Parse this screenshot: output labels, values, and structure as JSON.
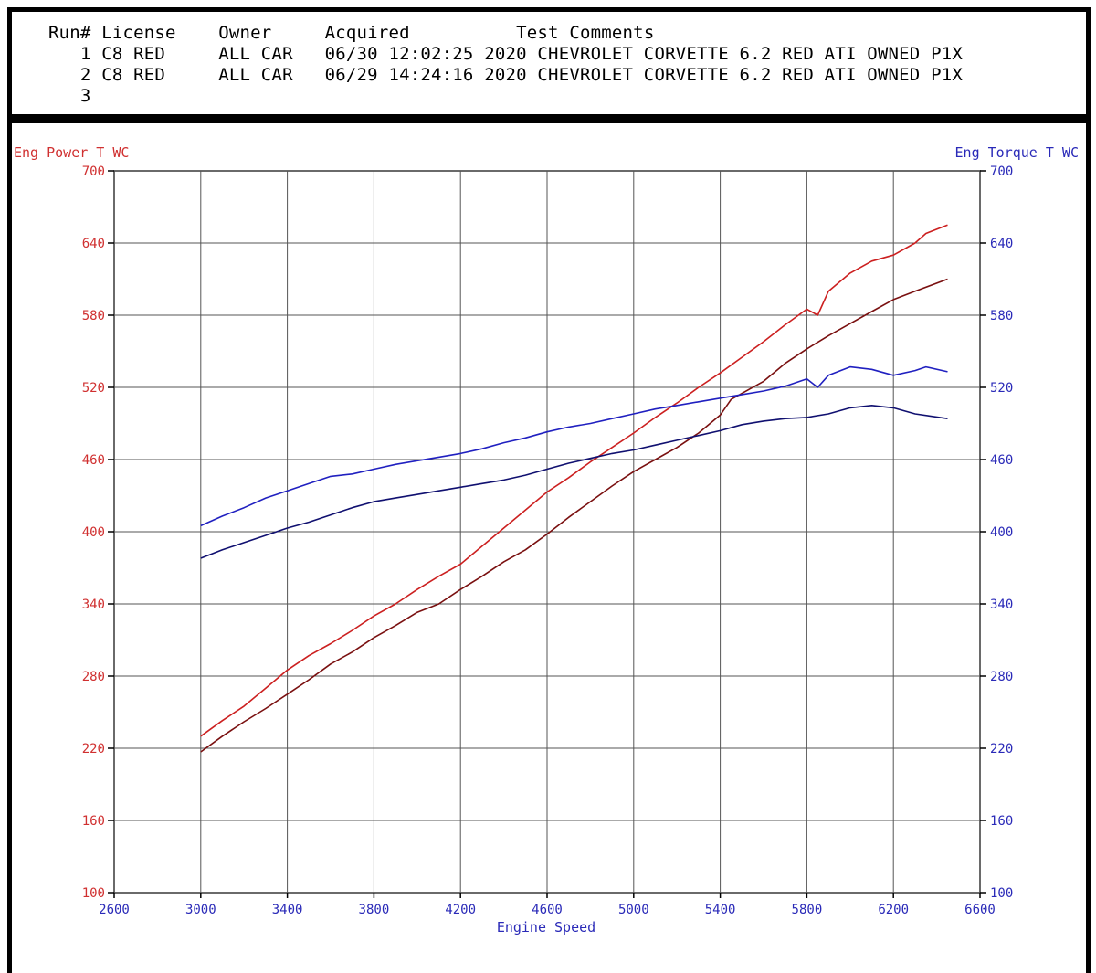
{
  "header": {
    "columns": [
      "Run#",
      "License",
      "Owner",
      "Acquired",
      "Test",
      "Comments"
    ],
    "runs": [
      {
        "run": "1",
        "license": "C8 RED",
        "owner": "ALL CAR",
        "acquired": "06/30 12:02:25",
        "test": "2020",
        "comments": "CHEVROLET CORVETTE 6.2 RED ATI OWNED P1X"
      },
      {
        "run": "2",
        "license": "C8 RED",
        "owner": "ALL CAR",
        "acquired": "06/29 14:24:16",
        "test": "2020",
        "comments": "CHEVROLET CORVETTE 6.2 RED ATI OWNED P1X"
      },
      {
        "run": "3",
        "license": "",
        "owner": "",
        "acquired": "",
        "test": "",
        "comments": ""
      }
    ]
  },
  "colors": {
    "power_axis": "#d03030",
    "torque_axis": "#2a2ab8",
    "power_run1": "#cc2020",
    "power_run2": "#7a1010",
    "torque_run1": "#2020c0",
    "torque_run2": "#101070",
    "grid": "#555555"
  },
  "chart_data": {
    "type": "line",
    "ylabel_left": "Eng Power T WC",
    "ylabel_right": "Eng Torque T WC",
    "xlabel": "Engine Speed",
    "xlim": [
      2600,
      6600
    ],
    "ylim": [
      100,
      700
    ],
    "x_ticks": [
      "2600",
      "3000",
      "3400",
      "3800",
      "4200",
      "4600",
      "5000",
      "5400",
      "5800",
      "6200",
      "6600"
    ],
    "y_ticks": [
      "100",
      "160",
      "220",
      "280",
      "340",
      "400",
      "460",
      "520",
      "580",
      "640",
      "700"
    ],
    "grid": true,
    "series": [
      {
        "axis": "left",
        "color_key": "power_run1",
        "x": [
          3000,
          3100,
          3200,
          3300,
          3400,
          3500,
          3600,
          3700,
          3800,
          3900,
          4000,
          4100,
          4200,
          4300,
          4400,
          4500,
          4600,
          4700,
          4800,
          4900,
          5000,
          5100,
          5200,
          5300,
          5400,
          5500,
          5600,
          5700,
          5800,
          5850,
          5900,
          6000,
          6100,
          6200,
          6300,
          6350,
          6450
        ],
        "values": [
          230,
          243,
          255,
          270,
          285,
          297,
          307,
          318,
          330,
          340,
          352,
          363,
          373,
          388,
          403,
          418,
          433,
          445,
          458,
          470,
          482,
          495,
          507,
          520,
          532,
          545,
          558,
          572,
          585,
          580,
          600,
          615,
          625,
          630,
          640,
          648,
          655
        ]
      },
      {
        "axis": "left",
        "color_key": "power_run2",
        "x": [
          3000,
          3100,
          3200,
          3300,
          3400,
          3500,
          3600,
          3700,
          3800,
          3900,
          4000,
          4100,
          4200,
          4300,
          4400,
          4500,
          4600,
          4700,
          4800,
          4900,
          5000,
          5100,
          5200,
          5300,
          5400,
          5450,
          5500,
          5600,
          5700,
          5800,
          5900,
          6000,
          6100,
          6200,
          6300,
          6450
        ],
        "values": [
          217,
          230,
          242,
          253,
          265,
          277,
          290,
          300,
          312,
          322,
          333,
          340,
          352,
          363,
          375,
          385,
          398,
          412,
          425,
          438,
          450,
          460,
          470,
          482,
          497,
          510,
          515,
          525,
          540,
          552,
          563,
          573,
          583,
          593,
          600,
          610
        ]
      },
      {
        "axis": "right",
        "color_key": "torque_run1",
        "x": [
          3000,
          3100,
          3200,
          3300,
          3400,
          3500,
          3600,
          3700,
          3800,
          3900,
          4000,
          4100,
          4200,
          4300,
          4400,
          4500,
          4600,
          4700,
          4800,
          4900,
          5000,
          5100,
          5200,
          5300,
          5400,
          5500,
          5600,
          5700,
          5800,
          5850,
          5900,
          6000,
          6100,
          6200,
          6300,
          6350,
          6450
        ],
        "values": [
          405,
          413,
          420,
          428,
          434,
          440,
          446,
          448,
          452,
          456,
          459,
          462,
          465,
          469,
          474,
          478,
          483,
          487,
          490,
          494,
          498,
          502,
          505,
          508,
          511,
          514,
          517,
          521,
          527,
          520,
          530,
          537,
          535,
          530,
          534,
          537,
          533
        ]
      },
      {
        "axis": "right",
        "color_key": "torque_run2",
        "x": [
          3000,
          3100,
          3200,
          3300,
          3400,
          3500,
          3600,
          3700,
          3800,
          3900,
          4000,
          4100,
          4200,
          4300,
          4400,
          4500,
          4600,
          4700,
          4800,
          4900,
          5000,
          5100,
          5200,
          5300,
          5400,
          5500,
          5600,
          5700,
          5800,
          5900,
          6000,
          6100,
          6200,
          6300,
          6450
        ],
        "values": [
          378,
          385,
          391,
          397,
          403,
          408,
          414,
          420,
          425,
          428,
          431,
          434,
          437,
          440,
          443,
          447,
          452,
          457,
          461,
          465,
          468,
          472,
          476,
          480,
          484,
          489,
          492,
          494,
          495,
          498,
          503,
          505,
          503,
          498,
          494
        ]
      }
    ]
  }
}
